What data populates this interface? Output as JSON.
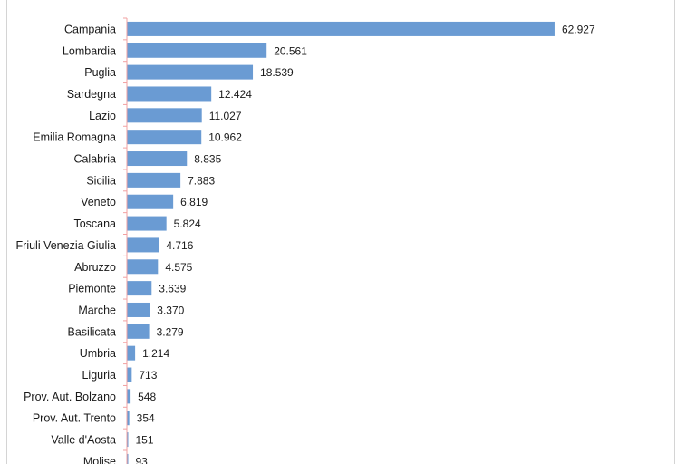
{
  "chart_data": {
    "type": "bar",
    "orientation": "horizontal",
    "title": "",
    "xlabel": "",
    "ylabel": "",
    "grid": false,
    "legend": "none",
    "bar_color": "#6a9bd3",
    "axis_color": "#f2a0a0",
    "xlim": [
      0,
      70000
    ],
    "categories": [
      "Campania",
      "Lombardia",
      "Puglia",
      "Sardegna",
      "Lazio",
      "Emilia Romagna",
      "Calabria",
      "Sicilia",
      "Veneto",
      "Toscana",
      "Friuli Venezia Giulia",
      "Abruzzo",
      "Piemonte",
      "Marche",
      "Basilicata",
      "Umbria",
      "Liguria",
      "Prov. Aut. Bolzano",
      "Prov. Aut. Trento",
      "Valle d'Aosta",
      "Molise"
    ],
    "values": [
      62927,
      20561,
      18539,
      12424,
      11027,
      10962,
      8835,
      7883,
      6819,
      5824,
      4716,
      4575,
      3639,
      3370,
      3279,
      1214,
      713,
      548,
      354,
      151,
      93
    ],
    "value_labels": [
      "62.927",
      "20.561",
      "18.539",
      "12.424",
      "11.027",
      "10.962",
      "8.835",
      "7.883",
      "6.819",
      "5.824",
      "4.716",
      "4.575",
      "3.639",
      "3.370",
      "3.279",
      "1.214",
      "713",
      "548",
      "354",
      "151",
      "93"
    ]
  }
}
